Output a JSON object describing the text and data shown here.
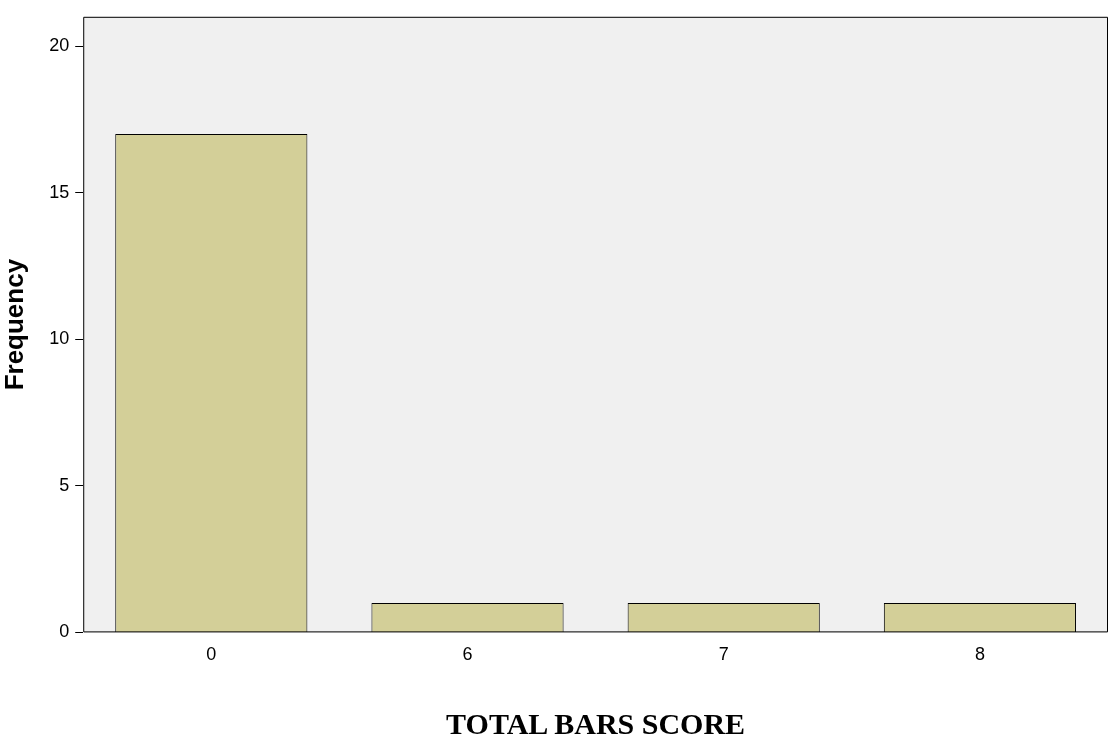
{
  "chart_data": {
    "type": "bar",
    "xlabel": "TOTAL BARS SCORE",
    "ylabel": "Frequency",
    "categories": [
      "0",
      "6",
      "7",
      "8"
    ],
    "values": [
      17,
      1,
      1,
      1
    ],
    "color": "#d3cf98",
    "ylim": [
      0,
      21
    ],
    "yticks": [
      0,
      5,
      10,
      15,
      20
    ],
    "grid": false,
    "legend": false
  }
}
